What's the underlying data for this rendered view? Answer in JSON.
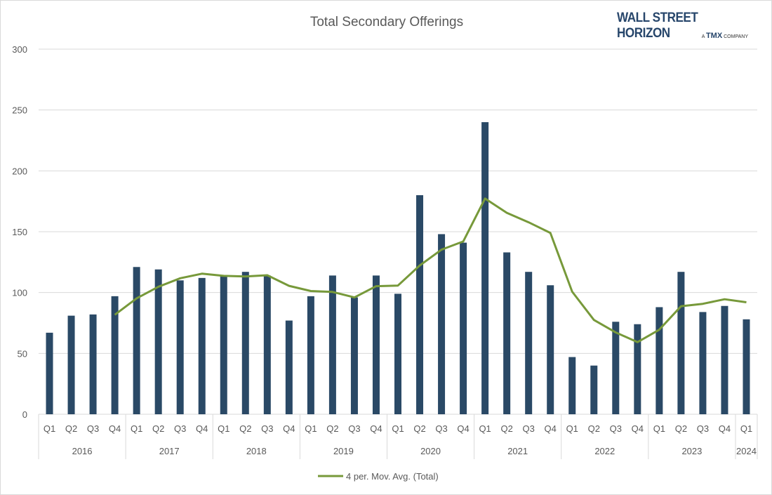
{
  "chart_data": {
    "type": "bar",
    "title": "Total Secondary Offerings",
    "ylim": [
      0,
      300
    ],
    "yticks": [
      0,
      50,
      100,
      150,
      200,
      250,
      300
    ],
    "grid": true,
    "legend_position": "bottom",
    "years": [
      "2016",
      "2017",
      "2018",
      "2019",
      "2020",
      "2021",
      "2022",
      "2023",
      "2024"
    ],
    "categories": [
      {
        "year": "2016",
        "q": "Q1"
      },
      {
        "year": "2016",
        "q": "Q2"
      },
      {
        "year": "2016",
        "q": "Q3"
      },
      {
        "year": "2016",
        "q": "Q4"
      },
      {
        "year": "2017",
        "q": "Q1"
      },
      {
        "year": "2017",
        "q": "Q2"
      },
      {
        "year": "2017",
        "q": "Q3"
      },
      {
        "year": "2017",
        "q": "Q4"
      },
      {
        "year": "2018",
        "q": "Q1"
      },
      {
        "year": "2018",
        "q": "Q2"
      },
      {
        "year": "2018",
        "q": "Q3"
      },
      {
        "year": "2018",
        "q": "Q4"
      },
      {
        "year": "2019",
        "q": "Q1"
      },
      {
        "year": "2019",
        "q": "Q2"
      },
      {
        "year": "2019",
        "q": "Q3"
      },
      {
        "year": "2019",
        "q": "Q4"
      },
      {
        "year": "2020",
        "q": "Q1"
      },
      {
        "year": "2020",
        "q": "Q2"
      },
      {
        "year": "2020",
        "q": "Q3"
      },
      {
        "year": "2020",
        "q": "Q4"
      },
      {
        "year": "2021",
        "q": "Q1"
      },
      {
        "year": "2021",
        "q": "Q2"
      },
      {
        "year": "2021",
        "q": "Q3"
      },
      {
        "year": "2021",
        "q": "Q4"
      },
      {
        "year": "2022",
        "q": "Q1"
      },
      {
        "year": "2022",
        "q": "Q2"
      },
      {
        "year": "2022",
        "q": "Q3"
      },
      {
        "year": "2022",
        "q": "Q4"
      },
      {
        "year": "2023",
        "q": "Q1"
      },
      {
        "year": "2023",
        "q": "Q2"
      },
      {
        "year": "2023",
        "q": "Q3"
      },
      {
        "year": "2023",
        "q": "Q4"
      },
      {
        "year": "2024",
        "q": "Q1"
      }
    ],
    "series": [
      {
        "type": "bar",
        "color": "#2a4966",
        "values": [
          67,
          81,
          82,
          97,
          121,
          119,
          110,
          112,
          114,
          117,
          114,
          77,
          97,
          114,
          96,
          114,
          99,
          180,
          148,
          141,
          240,
          133,
          117,
          106,
          47,
          40,
          76,
          74,
          88,
          117,
          84,
          89,
          78
        ]
      },
      {
        "type": "line",
        "name": "4 per. Mov. Avg. (Total)",
        "color": "#77993a",
        "values": [
          null,
          null,
          null,
          81.75,
          95.25,
          104.75,
          111.75,
          115.5,
          113.75,
          113.25,
          114.25,
          105.5,
          101.25,
          100.5,
          96,
          105.25,
          105.75,
          122.25,
          135.25,
          142,
          177.25,
          165.5,
          157.75,
          149,
          100.75,
          77.5,
          67.25,
          59.25,
          69.5,
          88.75,
          90.75,
          94.5,
          92
        ]
      }
    ]
  },
  "logo": {
    "name": "WALL STREET HORIZON",
    "tagline_pre": "A",
    "tagline_brand": "TMX",
    "tagline_post": "COMPANY"
  }
}
